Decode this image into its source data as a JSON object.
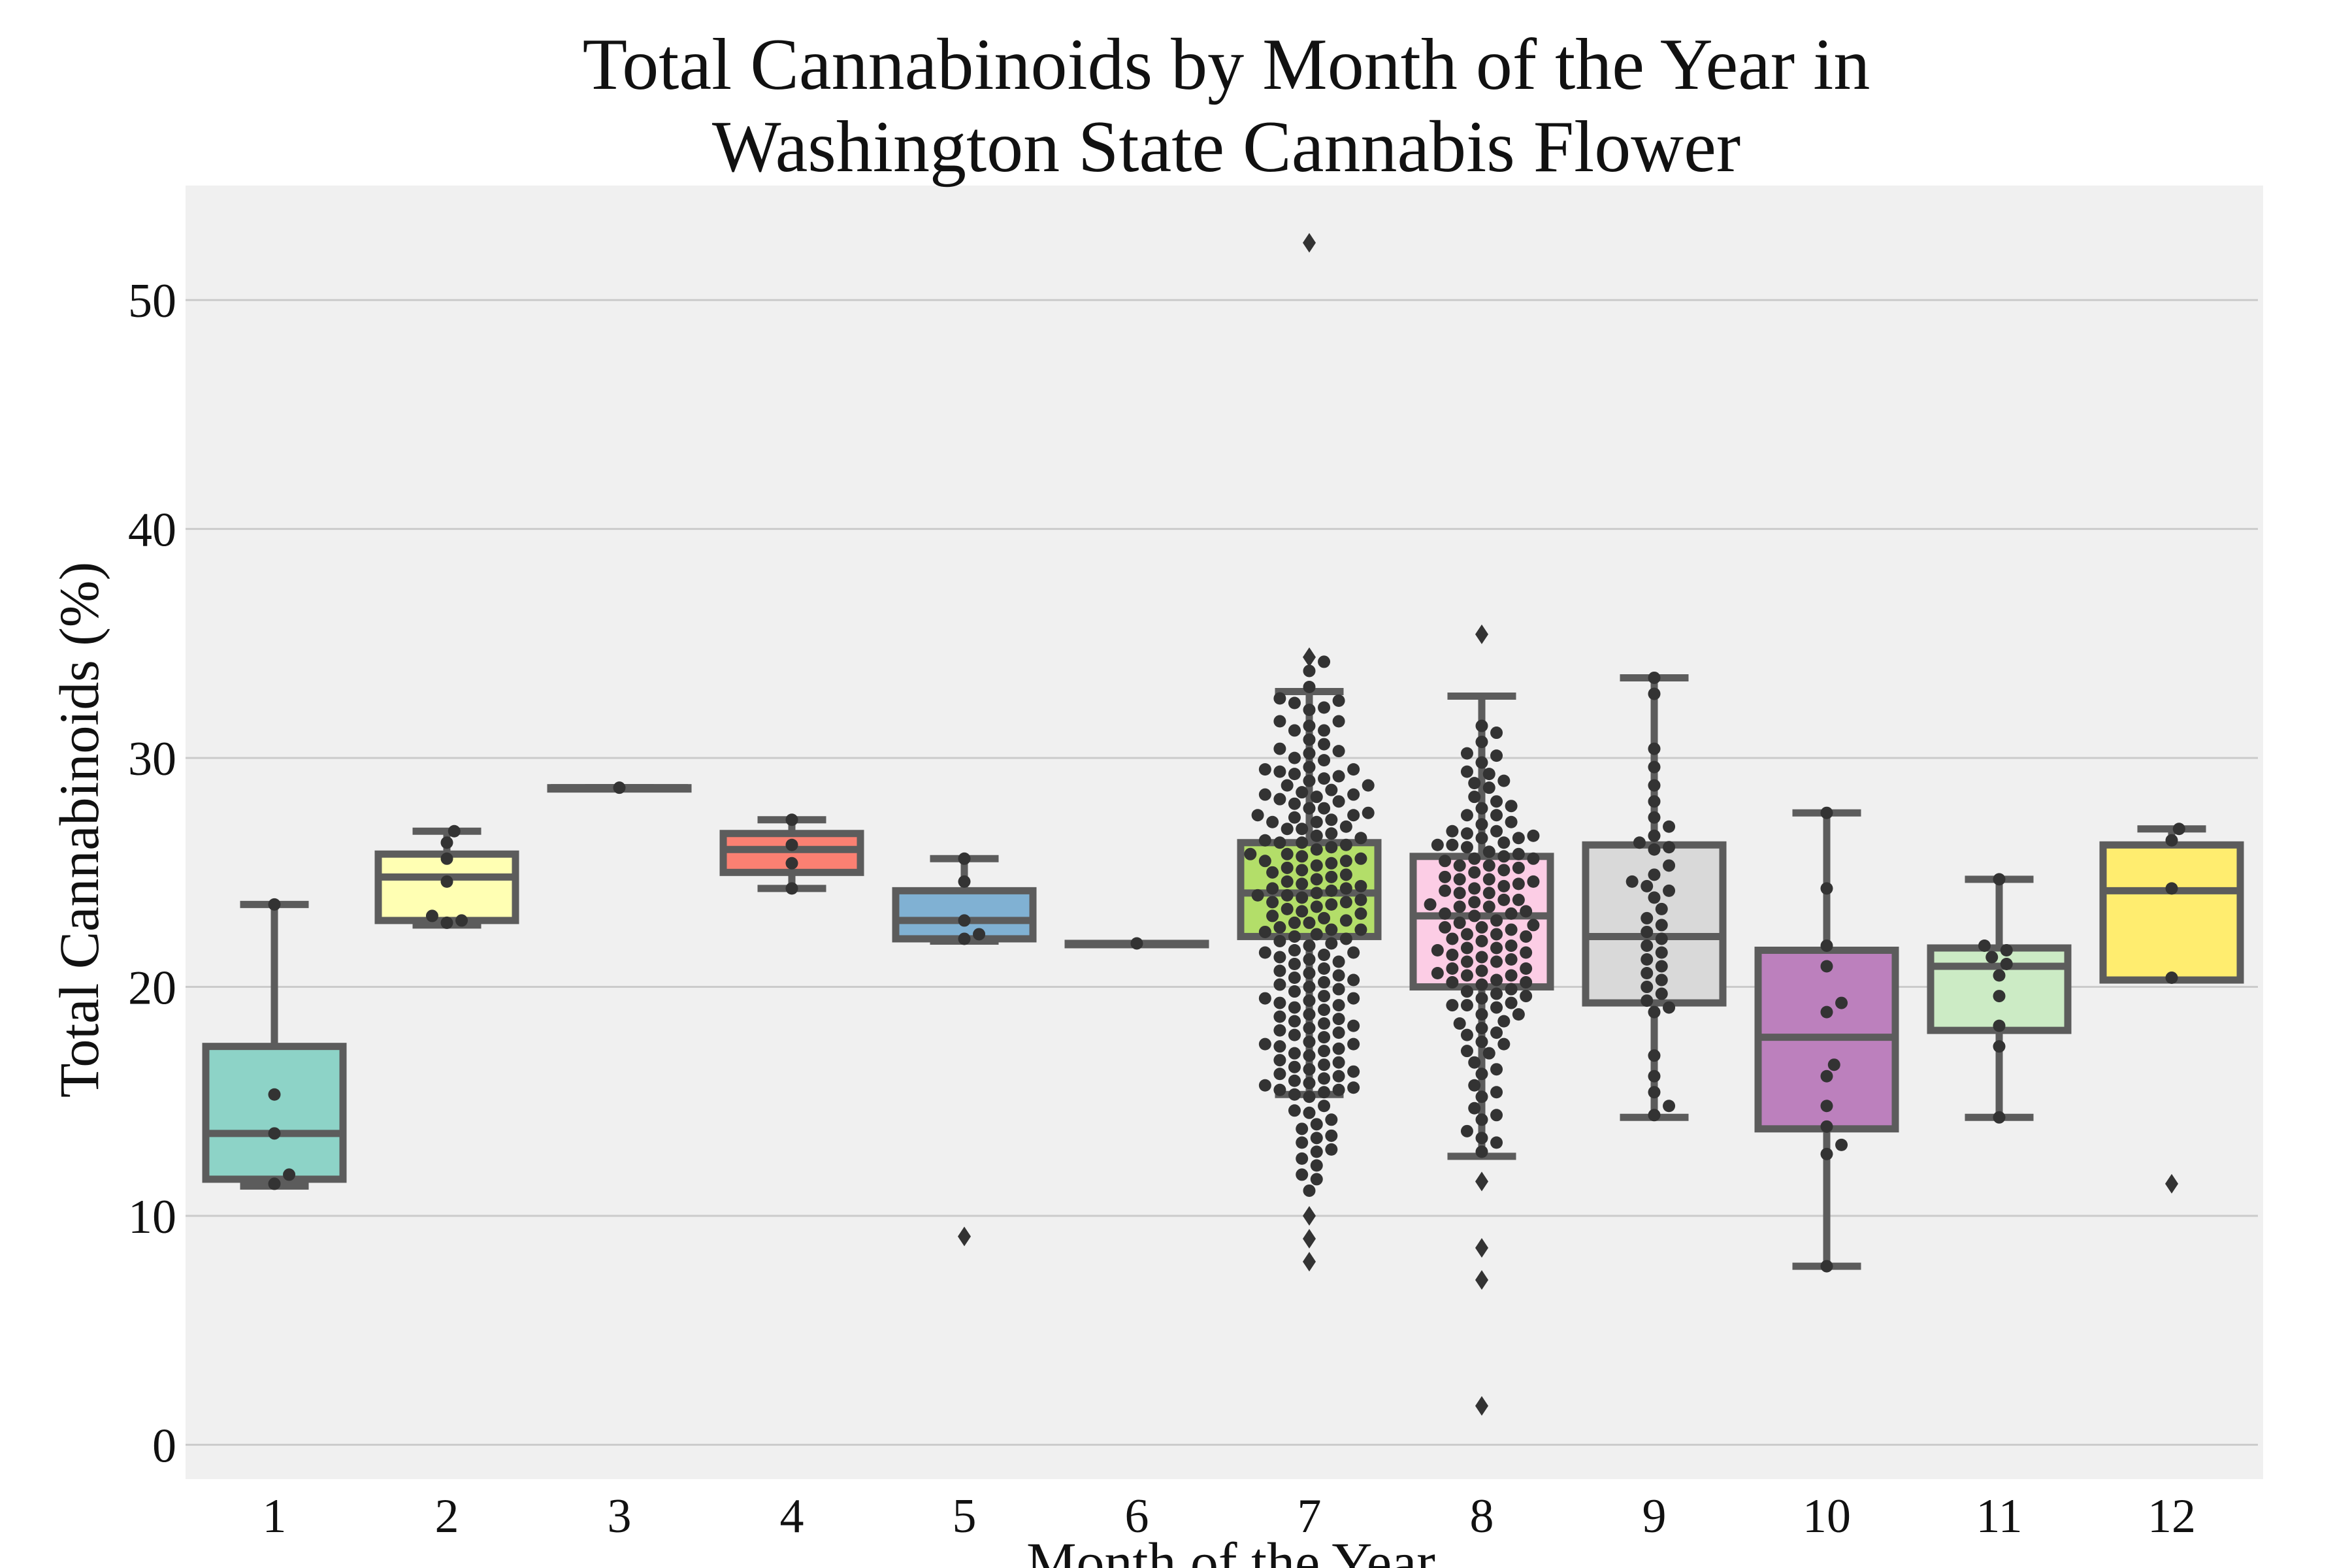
{
  "chart_data": {
    "type": "box",
    "title_lines": [
      "Total Cannabinoids by Month of the Year in",
      "Washington State Cannabis Flower"
    ],
    "xlabel": "Month of the Year",
    "ylabel": "Total Cannabinoids (%)",
    "categories": [
      "1",
      "2",
      "3",
      "4",
      "5",
      "6",
      "7",
      "8",
      "9",
      "10",
      "11",
      "12"
    ],
    "ylim": [
      -1.5,
      55
    ],
    "yticks": [
      0,
      10,
      20,
      30,
      40,
      50
    ],
    "grid": "horizontal",
    "colors": {
      "background": "#f0f0f0",
      "grid": "#cbcbcb",
      "box_edge": "#5c5c5c",
      "point": "#333333"
    },
    "boxes": [
      {
        "category": "1",
        "fill": "#8dd3c7",
        "q1": 11.6,
        "median": 13.6,
        "q3": 17.4,
        "whislo": 11.3,
        "whishi": 23.6,
        "fliers": []
      },
      {
        "category": "2",
        "fill": "#ffffb3",
        "q1": 22.9,
        "median": 24.8,
        "q3": 25.8,
        "whislo": 22.7,
        "whishi": 26.8,
        "fliers": []
      },
      {
        "category": "3",
        "fill": "#bebada",
        "q1": 28.7,
        "median": 28.7,
        "q3": 28.7,
        "whislo": 28.7,
        "whishi": 28.7,
        "fliers": []
      },
      {
        "category": "4",
        "fill": "#fb8072",
        "q1": 25.0,
        "median": 26.0,
        "q3": 26.7,
        "whislo": 24.3,
        "whishi": 27.3,
        "fliers": []
      },
      {
        "category": "5",
        "fill": "#80b1d3",
        "q1": 22.1,
        "median": 22.9,
        "q3": 24.2,
        "whislo": 22.0,
        "whishi": 25.6,
        "fliers": [
          9.1
        ]
      },
      {
        "category": "6",
        "fill": "#fdb462",
        "q1": 21.9,
        "median": 21.9,
        "q3": 21.9,
        "whislo": 21.9,
        "whishi": 21.9,
        "fliers": []
      },
      {
        "category": "7",
        "fill": "#b3de69",
        "q1": 22.2,
        "median": 24.1,
        "q3": 26.3,
        "whislo": 15.3,
        "whishi": 32.9,
        "fliers": [
          52.5,
          34.4,
          10.0,
          9.0,
          8.0
        ]
      },
      {
        "category": "8",
        "fill": "#fccde5",
        "q1": 20.0,
        "median": 23.1,
        "q3": 25.7,
        "whislo": 12.6,
        "whishi": 32.7,
        "fliers": [
          35.4,
          11.5,
          8.6,
          7.2,
          1.7
        ]
      },
      {
        "category": "9",
        "fill": "#d9d9d9",
        "q1": 19.3,
        "median": 22.2,
        "q3": 26.2,
        "whislo": 14.3,
        "whishi": 33.5,
        "fliers": []
      },
      {
        "category": "10",
        "fill": "#bc80bd",
        "q1": 13.8,
        "median": 17.8,
        "q3": 21.6,
        "whislo": 7.8,
        "whishi": 27.6,
        "fliers": []
      },
      {
        "category": "11",
        "fill": "#ccebc5",
        "q1": 18.1,
        "median": 20.9,
        "q3": 21.7,
        "whislo": 14.3,
        "whishi": 24.7,
        "fliers": []
      },
      {
        "category": "12",
        "fill": "#ffed6f",
        "q1": 20.3,
        "median": 24.2,
        "q3": 26.2,
        "whislo": 20.3,
        "whishi": 26.9,
        "fliers": [
          11.4
        ]
      }
    ],
    "observations": [
      {
        "category": "1",
        "values": [
          15.3,
          11.8,
          11.4,
          23.6,
          13.6
        ]
      },
      {
        "category": "2",
        "values": [
          26.8,
          26.3,
          25.6,
          24.6,
          23.1,
          22.8,
          22.9
        ]
      },
      {
        "category": "3",
        "values": [
          28.7
        ]
      },
      {
        "category": "4",
        "values": [
          27.3,
          26.2,
          25.4,
          24.3
        ]
      },
      {
        "category": "5",
        "values": [
          25.6,
          24.6,
          22.9,
          22.3,
          22.1
        ]
      },
      {
        "category": "6",
        "values": [
          21.9
        ]
      },
      {
        "category": "7",
        "values": [
          34.2,
          33.8,
          33.1,
          32.5,
          32.1,
          31.6,
          31.2,
          30.8,
          30.3,
          29.9,
          29.5,
          29.1,
          28.8,
          28.4,
          28.1,
          27.8,
          27.5,
          27.2,
          26.9,
          26.6,
          26.3,
          26.1,
          25.8,
          25.5,
          25.2,
          24.9,
          24.6,
          24.3,
          24.0,
          23.7,
          23.4,
          23.1,
          22.8,
          22.5,
          22.2,
          21.9,
          21.5,
          21.1,
          20.7,
          20.3,
          19.9,
          19.5,
          19.1,
          18.7,
          18.3,
          17.9,
          17.5,
          17.1,
          16.7,
          16.3,
          15.9,
          15.5,
          15.2,
          14.6,
          14.0,
          13.4,
          12.8,
          12.2,
          11.6,
          11.1,
          26.0,
          25.0,
          24.0,
          23.0,
          22.0,
          27.0,
          28.0,
          21.0,
          20.0,
          19.0,
          18.0,
          17.0,
          16.0,
          29.0,
          30.0,
          25.5,
          24.5,
          23.5,
          22.5,
          26.5,
          27.5,
          21.5,
          20.5,
          19.5,
          18.5,
          17.5,
          16.5,
          15.5,
          28.5,
          29.5,
          24.2,
          23.8,
          25.8,
          22.3,
          26.2,
          24.8,
          23.3,
          25.3,
          22.8,
          21.8,
          20.8,
          19.8,
          18.8,
          17.8,
          16.8,
          15.8,
          27.8,
          28.8,
          24.4,
          23.6,
          25.6,
          22.6,
          26.4,
          21.3,
          20.2,
          19.3,
          18.2,
          17.3,
          16.2,
          15.4,
          27.3,
          28.3,
          29.3,
          24.1,
          23.9,
          25.1,
          22.9,
          26.9,
          21.6,
          20.6,
          19.6,
          18.6,
          17.6,
          16.6,
          15.6,
          27.6,
          28.6,
          29.6,
          30.6,
          31.6,
          32.6,
          14.5,
          13.5,
          12.5,
          11.8,
          24.7,
          23.2,
          25.7,
          22.1,
          26.7,
          21.2,
          20.1,
          19.2,
          18.1,
          17.2,
          16.1,
          15.3,
          27.2,
          28.2,
          29.2,
          30.2,
          31.2,
          32.2,
          14.2,
          13.2,
          12.9,
          24.3,
          23.7,
          25.4,
          22.4,
          26.3,
          21.4,
          20.4,
          19.4,
          18.4,
          17.4,
          16.4,
          15.7,
          27.4,
          28.4,
          29.4,
          30.4,
          31.4,
          32.4,
          14.8,
          13.8
        ]
      },
      {
        "category": "8",
        "values": [
          31.4,
          31.1,
          30.7,
          30.2,
          29.8,
          29.4,
          29.0,
          28.7,
          28.3,
          27.9,
          27.5,
          27.1,
          26.8,
          26.5,
          26.2,
          25.9,
          25.6,
          25.3,
          25.0,
          24.7,
          24.4,
          24.1,
          23.8,
          23.5,
          23.2,
          22.9,
          22.6,
          22.3,
          22.0,
          21.7,
          21.4,
          21.1,
          20.8,
          20.5,
          20.2,
          19.9,
          19.6,
          19.2,
          18.8,
          18.4,
          18.0,
          17.6,
          17.2,
          16.7,
          16.2,
          15.7,
          15.2,
          14.7,
          14.2,
          13.7,
          13.2,
          12.8,
          25.5,
          24.5,
          23.5,
          22.5,
          21.5,
          20.5,
          26.5,
          27.5,
          19.5,
          18.5,
          25.2,
          24.2,
          23.2,
          22.2,
          21.2,
          20.2,
          26.2,
          27.2,
          19.2,
          18.2,
          25.8,
          24.8,
          23.8,
          22.8,
          21.8,
          20.8,
          26.8,
          27.8,
          19.8,
          18.8,
          25.1,
          24.1,
          23.1,
          22.1,
          21.1,
          20.1,
          26.1,
          28.1,
          19.1,
          17.9,
          25.7,
          24.7,
          23.7,
          22.7,
          21.7,
          20.7,
          26.7,
          28.9,
          19.7,
          17.5,
          25.3,
          24.3,
          23.3,
          22.3,
          21.3,
          20.3,
          26.3,
          29.3,
          19.3,
          17.1,
          25.6,
          24.6,
          23.6,
          22.6,
          21.6,
          20.6,
          26.6,
          30.1,
          16.4,
          15.4,
          14.4,
          13.4
        ]
      },
      {
        "category": "9",
        "values": [
          33.5,
          32.8,
          30.4,
          29.6,
          28.8,
          28.1,
          27.4,
          27.0,
          26.6,
          26.3,
          26.1,
          26.0,
          25.3,
          24.9,
          24.6,
          24.4,
          24.2,
          23.9,
          23.4,
          23.0,
          22.7,
          22.4,
          22.1,
          21.8,
          21.5,
          21.2,
          20.9,
          20.6,
          20.3,
          20.0,
          19.7,
          19.4,
          19.1,
          18.9,
          17.0,
          16.1,
          15.4,
          14.8,
          14.4
        ]
      },
      {
        "category": "10",
        "values": [
          27.6,
          24.3,
          21.8,
          20.9,
          19.3,
          18.9,
          16.6,
          16.1,
          14.8,
          13.9,
          13.1,
          12.7,
          7.8
        ]
      },
      {
        "category": "11",
        "values": [
          24.7,
          21.8,
          21.6,
          21.3,
          21.0,
          20.5,
          19.6,
          18.3,
          17.4,
          14.3
        ]
      },
      {
        "category": "12",
        "values": [
          26.9,
          26.4,
          24.3,
          20.4
        ]
      }
    ]
  }
}
